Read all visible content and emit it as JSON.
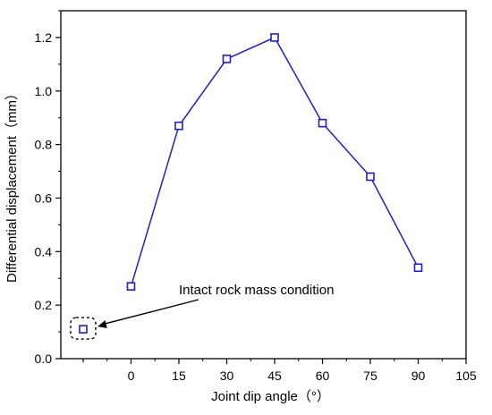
{
  "chart_data": {
    "type": "line",
    "title": "",
    "xlabel": "Joint dip angle（°）",
    "ylabel": "Differential displacement（mm）",
    "xlim": [
      -22,
      105
    ],
    "ylim": [
      0.0,
      1.3
    ],
    "xticks": [
      0,
      15,
      30,
      45,
      60,
      75,
      90,
      105
    ],
    "xtick_labels": [
      "0",
      "15",
      "30",
      "45",
      "60",
      "75",
      "90",
      "105"
    ],
    "yticks": [
      0.0,
      0.2,
      0.4,
      0.6,
      0.8,
      1.0,
      1.2
    ],
    "ytick_labels": [
      "0.0",
      "0.2",
      "0.4",
      "0.6",
      "0.8",
      "1.0",
      "1.2"
    ],
    "grid": false,
    "series": [
      {
        "x": [
          0,
          15,
          30,
          45,
          60,
          75,
          90
        ],
        "y": [
          0.27,
          0.87,
          1.12,
          1.2,
          0.88,
          0.68,
          0.34
        ],
        "color": "#1f1fc8",
        "marker": "open-square"
      }
    ],
    "extra_points": [
      {
        "x": -15,
        "y": 0.11,
        "color": "#1f1fc8",
        "marker": "open-square",
        "highlighted": true
      }
    ],
    "annotations": [
      {
        "text": "Intact rock mass condition",
        "target_point": "extra_points.0"
      }
    ]
  }
}
